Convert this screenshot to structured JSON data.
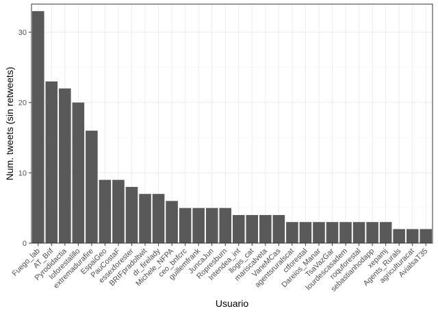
{
  "chart_data": {
    "type": "bar",
    "title": "",
    "xlabel": "Usuario",
    "ylabel": "Num. tweets (sin retweets)",
    "ylim": [
      0,
      34
    ],
    "yticks": [
      0,
      10,
      20,
      30
    ],
    "grid": true,
    "categories": [
      "Fuego_lab",
      "AT_Brif",
      "Pyrodidactia",
      "Ioforestalillo",
      "extremadurafire",
      "EspaiGeo",
      "PauCostaF",
      "essexforester",
      "BRIFpradoltwit",
      "dr_firelady",
      "Michele_NFPA",
      "ceo_bnfcrc",
      "guillemfrank",
      "JuncaJun",
      "Ropresburn",
      "Intendea_int",
      "llogis_cat",
      "mariscalveta",
      "VaneMCas",
      "agentsruralscat",
      "ctforestal",
      "Dareios_Manar",
      "TsaVazGar",
      "lourdescasadem",
      "roquforestal",
      "sebastianhodapp",
      "xepamj",
      "Agents_Rurals",
      "agriculturacat",
      "AvialsaT35"
    ],
    "values": [
      33,
      23,
      22,
      20,
      16,
      9,
      9,
      8,
      7,
      7,
      6,
      5,
      5,
      5,
      5,
      4,
      4,
      4,
      4,
      3,
      3,
      3,
      3,
      3,
      3,
      3,
      3,
      2,
      2,
      2
    ],
    "colors": {
      "bar": "#595959",
      "panel_border": "#333333",
      "grid_major": "#ebebeb",
      "grid_minor": "#f5f5f5"
    }
  }
}
